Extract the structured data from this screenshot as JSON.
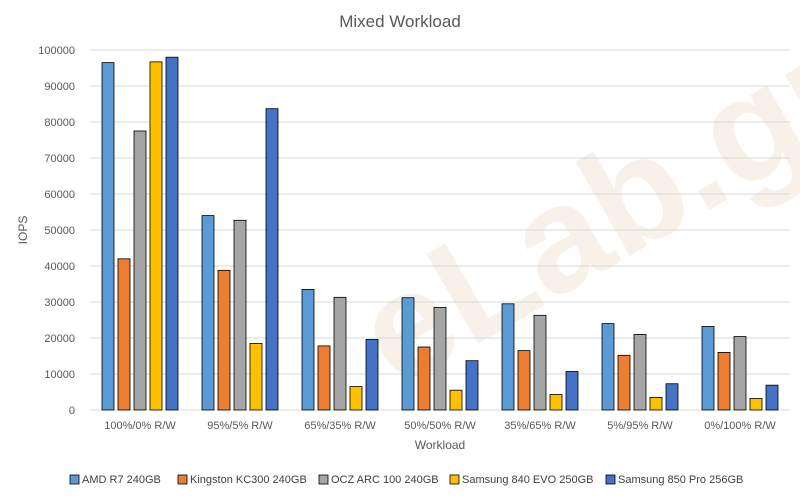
{
  "chart_data": {
    "type": "bar",
    "title": "Mixed Workload",
    "xlabel": "Workload",
    "ylabel": "IOPS",
    "ylim": [
      0,
      100000
    ],
    "yticks": [
      0,
      10000,
      20000,
      30000,
      40000,
      50000,
      60000,
      70000,
      80000,
      90000,
      100000
    ],
    "grid": true,
    "legend_position": "bottom",
    "categories": [
      "100%/0% R/W",
      "95%/5% R/W",
      "65%/35% R/W",
      "50%/50% R/W",
      "35%/65% R/W",
      "5%/95% R/W",
      "0%/100% R/W"
    ],
    "series": [
      {
        "name": "AMD R7 240GB",
        "color": "#5b9bd5",
        "values": [
          96500,
          54000,
          33500,
          31200,
          29500,
          24000,
          23200
        ]
      },
      {
        "name": "Kingston KC300 240GB",
        "color": "#ed7d31",
        "values": [
          42000,
          38800,
          17800,
          17500,
          16500,
          15200,
          16000
        ]
      },
      {
        "name": "OCZ ARC 100 240GB",
        "color": "#a5a5a5",
        "values": [
          77500,
          52700,
          31300,
          28500,
          26300,
          21000,
          20400
        ]
      },
      {
        "name": "Samsung 840 EVO 250GB",
        "color": "#ffc000",
        "values": [
          96700,
          18500,
          6500,
          5500,
          4300,
          3500,
          3200
        ]
      },
      {
        "name": "Samsung 850 Pro 256GB",
        "color": "#4472c4",
        "values": [
          98000,
          83700,
          19600,
          13700,
          10700,
          7300,
          6900
        ]
      }
    ]
  }
}
